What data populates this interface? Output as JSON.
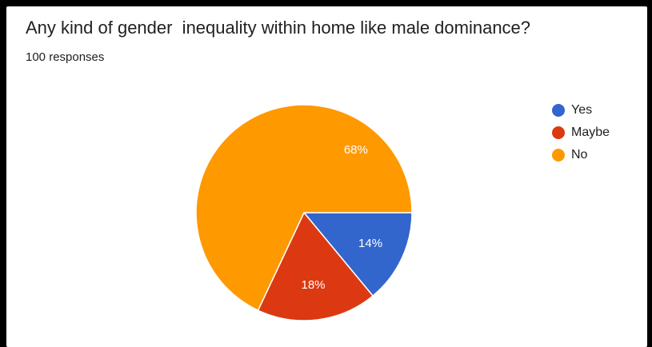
{
  "chart_data": {
    "type": "pie",
    "title": "Any kind of gender  inequality within home like male dominance?",
    "subtitle": "100 responses",
    "slices": [
      {
        "label": "Yes",
        "value": 14,
        "percent_label": "14%",
        "color": "#3366cc"
      },
      {
        "label": "Maybe",
        "value": 18,
        "percent_label": "18%",
        "color": "#dc3912"
      },
      {
        "label": "No",
        "value": 68,
        "percent_label": "68%",
        "color": "#ff9900"
      }
    ],
    "legend_position": "right"
  }
}
